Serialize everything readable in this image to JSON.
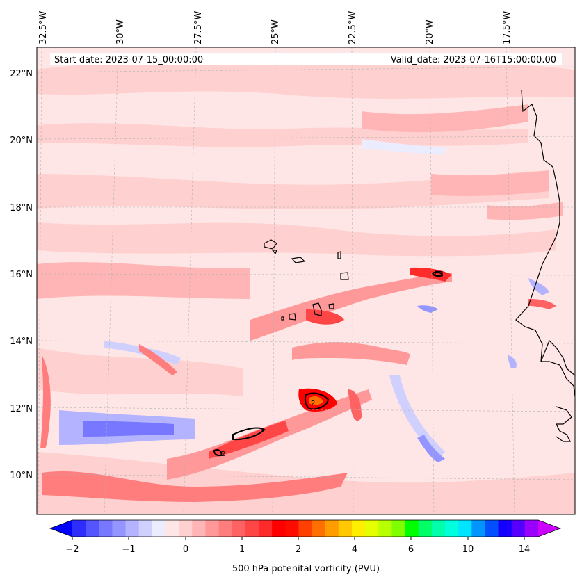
{
  "header": {
    "start_label": "Start date: 2023-07-15_00:00:00",
    "valid_label": "Valid_date: 2023-07-16T15:00:00.00"
  },
  "map": {
    "lon_labels": [
      "32.5°W",
      "30°W",
      "27.5°W",
      "25°W",
      "22.5°W",
      "20°W",
      "17.5°W"
    ],
    "lat_labels": [
      "22°N",
      "20°N",
      "18°N",
      "16°N",
      "14°N",
      "12°N",
      "10°N"
    ],
    "contour_label": "2",
    "colors": {
      "land_line": "#000000",
      "gridline": "#b0b0b0",
      "background_field": "#ffe6e6"
    }
  },
  "colorbar": {
    "ticks": [
      "−2",
      "−1",
      "0",
      "1",
      "2",
      "4",
      "6",
      "10",
      "14"
    ],
    "label": "500 hPa potenital vorticity (PVU)",
    "colors": [
      "#0000ff",
      "#2d2dff",
      "#5555ff",
      "#7777ff",
      "#9595ff",
      "#b3b3ff",
      "#d0d0ff",
      "#ececff",
      "#ffe6e6",
      "#ffd0d0",
      "#ffb5b5",
      "#ff9999",
      "#ff7d7d",
      "#ff6262",
      "#ff4646",
      "#ff2b2b",
      "#ff0000",
      "#ff0c00",
      "#ff4000",
      "#ff7000",
      "#ff9d00",
      "#ffc800",
      "#ffee00",
      "#e6ff00",
      "#b8ff00",
      "#80ff00",
      "#00ff00",
      "#00ff66",
      "#00ffaa",
      "#00ffdd",
      "#00e5ff",
      "#0095ff",
      "#0050ff",
      "#1500ff",
      "#5500ff",
      "#9900ff",
      "#cc00ff"
    ]
  }
}
